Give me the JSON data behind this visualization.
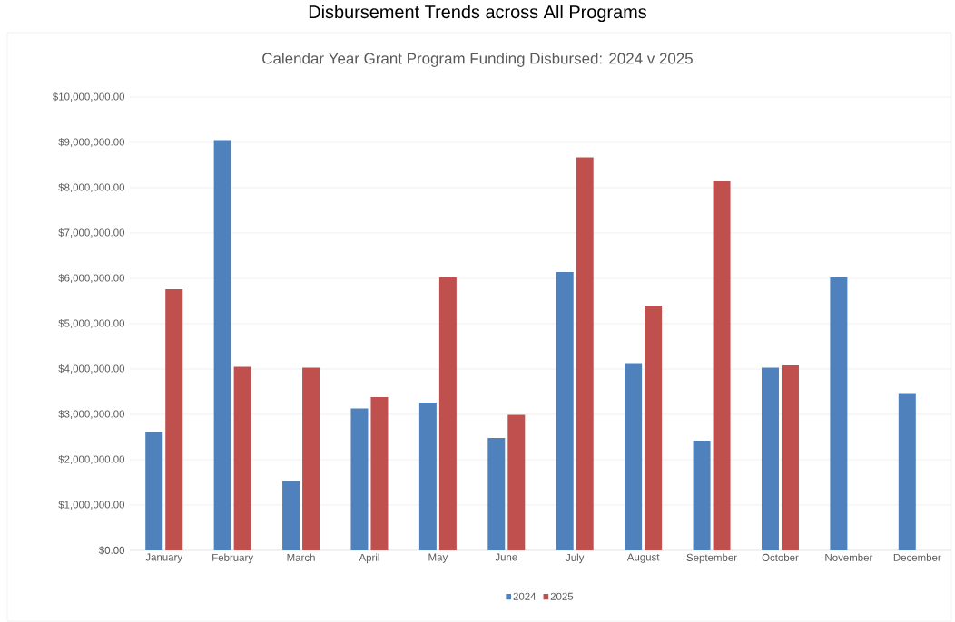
{
  "chart_data": {
    "type": "bar",
    "title": "Disbursement Trends across All Programs",
    "subtitle": "Calendar Year Grant Program Funding Disbursed: 2024 v 2025",
    "categories": [
      "January",
      "February",
      "March",
      "April",
      "May",
      "June",
      "July",
      "August",
      "September",
      "October",
      "November",
      "December"
    ],
    "series": [
      {
        "name": "2024",
        "color": "#4f81bd",
        "values": [
          2610000,
          9050000,
          1530000,
          3130000,
          3260000,
          2480000,
          6140000,
          4130000,
          2420000,
          4030000,
          6020000,
          3470000
        ]
      },
      {
        "name": "2025",
        "color": "#c0504d",
        "values": [
          5760000,
          4050000,
          4030000,
          3380000,
          6020000,
          2990000,
          8670000,
          5400000,
          8140000,
          4080000,
          null,
          null
        ]
      }
    ],
    "ylim": [
      0,
      10000000
    ],
    "yticks": [
      {
        "value": 0,
        "label": "$0.00"
      },
      {
        "value": 1000000,
        "label": "$1,000,000.00"
      },
      {
        "value": 2000000,
        "label": "$2,000,000.00"
      },
      {
        "value": 3000000,
        "label": "$3,000,000.00"
      },
      {
        "value": 4000000,
        "label": "$4,000,000.00"
      },
      {
        "value": 5000000,
        "label": "$5,000,000.00"
      },
      {
        "value": 6000000,
        "label": "$6,000,000.00"
      },
      {
        "value": 7000000,
        "label": "$7,000,000.00"
      },
      {
        "value": 8000000,
        "label": "$8,000,000.00"
      },
      {
        "value": 9000000,
        "label": "$9,000,000.00"
      },
      {
        "value": 10000000,
        "label": "$10,000,000.00"
      }
    ],
    "grid": "y",
    "legend": "bottom"
  }
}
